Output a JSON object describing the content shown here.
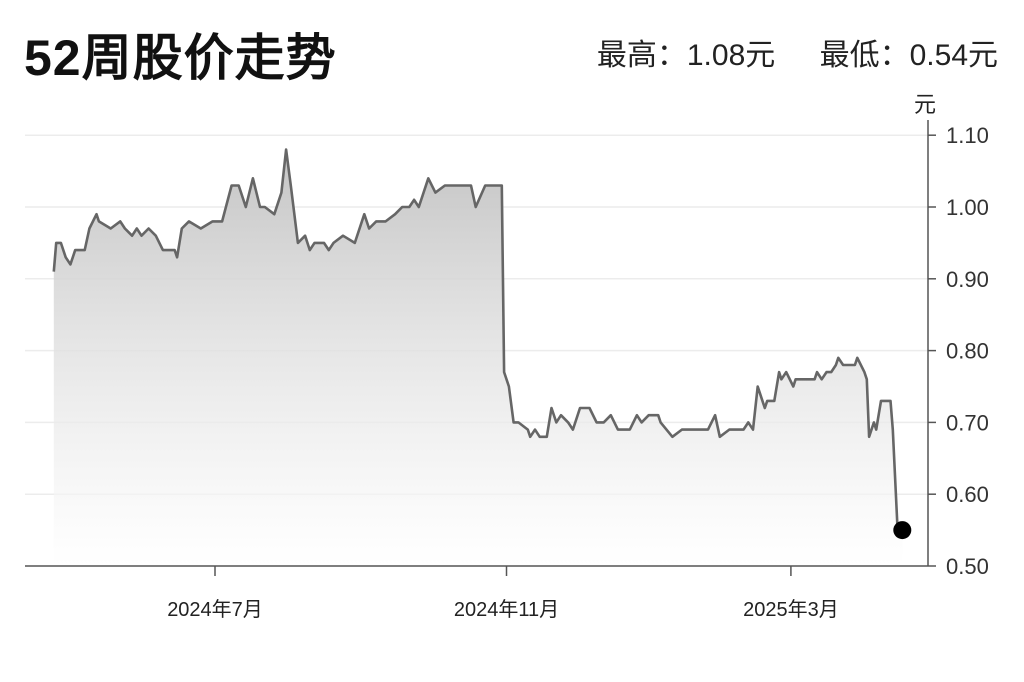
{
  "chart_data": {
    "type": "area",
    "title": "52周股价走势",
    "summary": {
      "high_label": "最高：1.08元",
      "low_label": "最低：0.54元"
    },
    "ylabel": "元",
    "ylim": [
      0.5,
      1.1
    ],
    "yticks": [
      "0.50",
      "0.60",
      "0.70",
      "0.80",
      "0.90",
      "1.00",
      "1.10"
    ],
    "xticks": [
      {
        "date": "2024-07-01",
        "label": "2024年7月"
      },
      {
        "date": "2024-11-01",
        "label": "2024年11月"
      },
      {
        "date": "2025-03-01",
        "label": "2025年3月"
      }
    ],
    "grid": true,
    "line_color": "#666666",
    "fill_top_color": "#c4c4c4",
    "marker_color": "#000000",
    "series": [
      {
        "points": [
          [
            "2024-04-24",
            0.91
          ],
          [
            "2024-04-25",
            0.95
          ],
          [
            "2024-04-27",
            0.95
          ],
          [
            "2024-04-29",
            0.93
          ],
          [
            "2024-05-01",
            0.92
          ],
          [
            "2024-05-03",
            0.94
          ],
          [
            "2024-05-07",
            0.94
          ],
          [
            "2024-05-09",
            0.97
          ],
          [
            "2024-05-12",
            0.99
          ],
          [
            "2024-05-13",
            0.98
          ],
          [
            "2024-05-18",
            0.97
          ],
          [
            "2024-05-22",
            0.98
          ],
          [
            "2024-05-24",
            0.97
          ],
          [
            "2024-05-27",
            0.96
          ],
          [
            "2024-05-29",
            0.97
          ],
          [
            "2024-05-31",
            0.96
          ],
          [
            "2024-06-03",
            0.97
          ],
          [
            "2024-06-06",
            0.96
          ],
          [
            "2024-06-09",
            0.94
          ],
          [
            "2024-06-14",
            0.94
          ],
          [
            "2024-06-15",
            0.93
          ],
          [
            "2024-06-17",
            0.97
          ],
          [
            "2024-06-20",
            0.98
          ],
          [
            "2024-06-25",
            0.97
          ],
          [
            "2024-06-30",
            0.98
          ],
          [
            "2024-07-04",
            0.98
          ],
          [
            "2024-07-08",
            1.03
          ],
          [
            "2024-07-11",
            1.03
          ],
          [
            "2024-07-14",
            1.0
          ],
          [
            "2024-07-17",
            1.04
          ],
          [
            "2024-07-20",
            1.0
          ],
          [
            "2024-07-22",
            1.0
          ],
          [
            "2024-07-26",
            0.99
          ],
          [
            "2024-07-29",
            1.02
          ],
          [
            "2024-07-31",
            1.08
          ],
          [
            "2024-08-02",
            1.03
          ],
          [
            "2024-08-05",
            0.95
          ],
          [
            "2024-08-08",
            0.96
          ],
          [
            "2024-08-10",
            0.94
          ],
          [
            "2024-08-12",
            0.95
          ],
          [
            "2024-08-16",
            0.95
          ],
          [
            "2024-08-18",
            0.94
          ],
          [
            "2024-08-20",
            0.95
          ],
          [
            "2024-08-24",
            0.96
          ],
          [
            "2024-08-29",
            0.95
          ],
          [
            "2024-09-02",
            0.99
          ],
          [
            "2024-09-04",
            0.97
          ],
          [
            "2024-09-07",
            0.98
          ],
          [
            "2024-09-11",
            0.98
          ],
          [
            "2024-09-15",
            0.99
          ],
          [
            "2024-09-18",
            1.0
          ],
          [
            "2024-09-21",
            1.0
          ],
          [
            "2024-09-23",
            1.01
          ],
          [
            "2024-09-25",
            1.0
          ],
          [
            "2024-09-29",
            1.04
          ],
          [
            "2024-10-02",
            1.02
          ],
          [
            "2024-10-06",
            1.03
          ],
          [
            "2024-10-11",
            1.03
          ],
          [
            "2024-10-17",
            1.03
          ],
          [
            "2024-10-19",
            1.0
          ],
          [
            "2024-10-23",
            1.03
          ],
          [
            "2024-10-27",
            1.03
          ],
          [
            "2024-10-30",
            1.03
          ],
          [
            "2024-10-31",
            0.77
          ],
          [
            "2024-11-02",
            0.75
          ],
          [
            "2024-11-04",
            0.7
          ],
          [
            "2024-11-06",
            0.7
          ],
          [
            "2024-11-10",
            0.69
          ],
          [
            "2024-11-11",
            0.68
          ],
          [
            "2024-11-13",
            0.69
          ],
          [
            "2024-11-15",
            0.68
          ],
          [
            "2024-11-18",
            0.68
          ],
          [
            "2024-11-20",
            0.72
          ],
          [
            "2024-11-22",
            0.7
          ],
          [
            "2024-11-24",
            0.71
          ],
          [
            "2024-11-27",
            0.7
          ],
          [
            "2024-11-29",
            0.69
          ],
          [
            "2024-12-02",
            0.72
          ],
          [
            "2024-12-06",
            0.72
          ],
          [
            "2024-12-09",
            0.7
          ],
          [
            "2024-12-12",
            0.7
          ],
          [
            "2024-12-15",
            0.71
          ],
          [
            "2024-12-18",
            0.69
          ],
          [
            "2024-12-23",
            0.69
          ],
          [
            "2024-12-26",
            0.71
          ],
          [
            "2024-12-28",
            0.7
          ],
          [
            "2024-12-31",
            0.71
          ],
          [
            "2025-01-04",
            0.71
          ],
          [
            "2025-01-05",
            0.7
          ],
          [
            "2025-01-10",
            0.68
          ],
          [
            "2025-01-14",
            0.69
          ],
          [
            "2025-01-25",
            0.69
          ],
          [
            "2025-01-28",
            0.71
          ],
          [
            "2025-01-30",
            0.68
          ],
          [
            "2025-02-03",
            0.69
          ],
          [
            "2025-02-09",
            0.69
          ],
          [
            "2025-02-11",
            0.7
          ],
          [
            "2025-02-13",
            0.69
          ],
          [
            "2025-02-15",
            0.75
          ],
          [
            "2025-02-18",
            0.72
          ],
          [
            "2025-02-19",
            0.73
          ],
          [
            "2025-02-22",
            0.73
          ],
          [
            "2025-02-24",
            0.77
          ],
          [
            "2025-02-25",
            0.76
          ],
          [
            "2025-02-27",
            0.77
          ],
          [
            "2025-03-02",
            0.75
          ],
          [
            "2025-03-03",
            0.76
          ],
          [
            "2025-03-11",
            0.76
          ],
          [
            "2025-03-12",
            0.77
          ],
          [
            "2025-03-14",
            0.76
          ],
          [
            "2025-03-16",
            0.77
          ],
          [
            "2025-03-18",
            0.77
          ],
          [
            "2025-03-20",
            0.78
          ],
          [
            "2025-03-21",
            0.79
          ],
          [
            "2025-03-23",
            0.78
          ],
          [
            "2025-03-28",
            0.78
          ],
          [
            "2025-03-29",
            0.79
          ],
          [
            "2025-04-01",
            0.77
          ],
          [
            "2025-04-02",
            0.76
          ],
          [
            "2025-04-03",
            0.68
          ],
          [
            "2025-04-05",
            0.7
          ],
          [
            "2025-04-06",
            0.69
          ],
          [
            "2025-04-08",
            0.73
          ],
          [
            "2025-04-12",
            0.73
          ],
          [
            "2025-04-13",
            0.69
          ],
          [
            "2025-04-15",
            0.55
          ],
          [
            "2025-04-17",
            0.55
          ]
        ]
      }
    ]
  }
}
